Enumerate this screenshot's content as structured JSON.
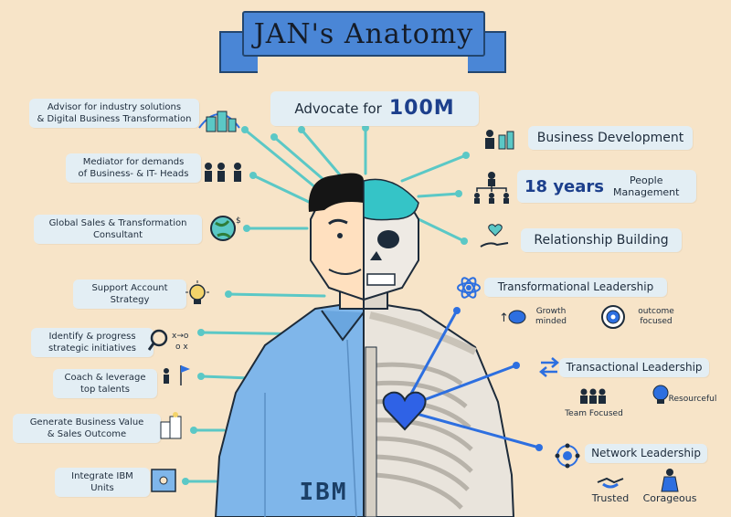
{
  "title": "JAN's Anatomy",
  "advocate": {
    "prefix": "Advocate for",
    "highlight": "100M"
  },
  "left_items": [
    {
      "id": "advisor",
      "line1": "Advisor for industry solutions",
      "line2": "& Digital Business Transformation"
    },
    {
      "id": "mediator",
      "line1": "Mediator for demands",
      "line2": "of Business- & IT- Heads"
    },
    {
      "id": "global",
      "line1": "Global Sales & Transformation",
      "line2": "Consultant"
    },
    {
      "id": "support",
      "line1": "Support Account",
      "line2": "Strategy"
    },
    {
      "id": "identify",
      "line1": "Identify & progress",
      "line2": "strategic initiatives"
    },
    {
      "id": "coach",
      "line1": "Coach & leverage",
      "line2": "top talents"
    },
    {
      "id": "generate",
      "line1": "Generate Business Value",
      "line2": "& Sales Outcome"
    },
    {
      "id": "integrate",
      "line1": "Integrate IBM",
      "line2": "Units"
    }
  ],
  "right_items": {
    "business_dev": "Business Development",
    "years": "18 years",
    "people_line1": "People",
    "people_line2": "Management",
    "relationship": "Relationship Building"
  },
  "leadership": {
    "transformational": "Transformational Leadership",
    "growth_line1": "Growth",
    "growth_line2": "minded",
    "outcome_line1": "outcome",
    "outcome_line2": "focused",
    "transactional": "Transactional Leadership",
    "team_focused": "Team Focused",
    "resourceful": "Resourceful",
    "network": "Network Leadership",
    "trusted": "Trusted",
    "courageous": "Corageous"
  },
  "shirt_logo": "IBM",
  "colors": {
    "background": "#f7e4c8",
    "label_bg": "#e3eef4",
    "accent_teal": "#5bc8c6",
    "accent_blue": "#2d6fe0",
    "banner_blue": "#4a86d6",
    "shirt_blue": "#7fb6ea",
    "heart": "#2f62e6",
    "skin": "#ffe0bf"
  }
}
